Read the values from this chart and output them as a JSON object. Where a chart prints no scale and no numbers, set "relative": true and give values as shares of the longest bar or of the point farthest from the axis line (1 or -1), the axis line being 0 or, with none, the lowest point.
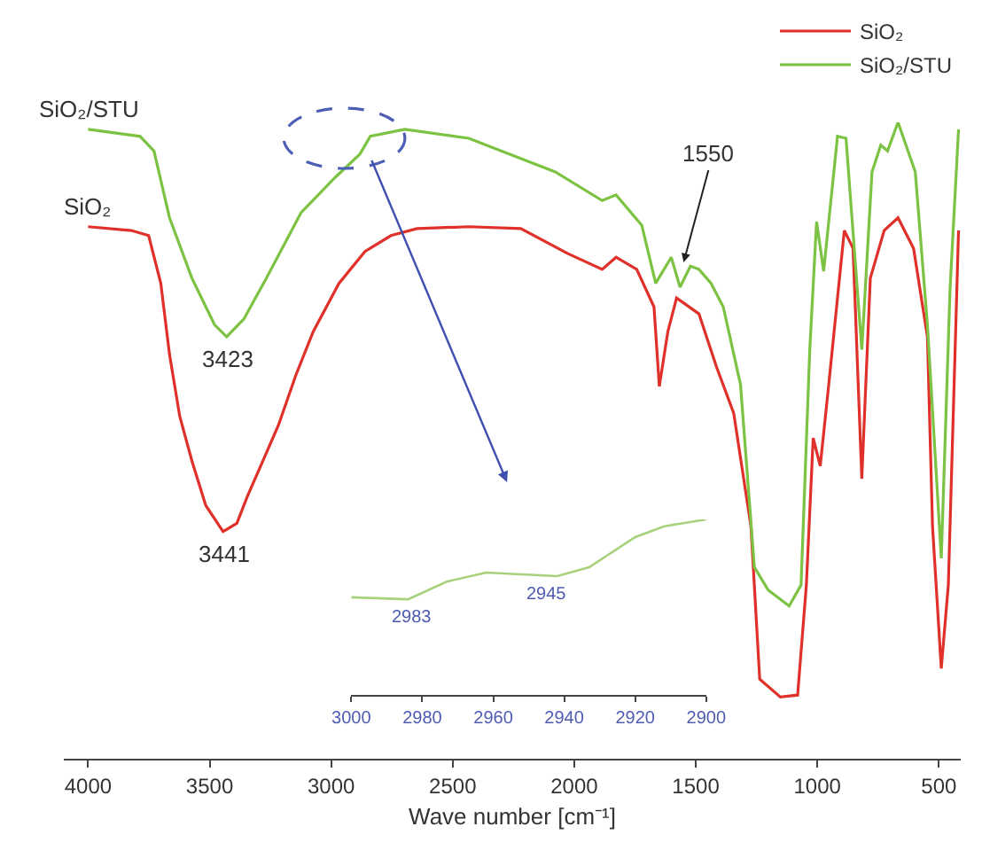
{
  "chart_data": [
    {
      "type": "line",
      "xlabel": "Wave number [cm⁻¹]",
      "xlim": [
        4100,
        410
      ],
      "xticks": [
        4000,
        3500,
        3000,
        2500,
        2000,
        1500,
        1000,
        500
      ],
      "relative": true,
      "legend": "top right",
      "series": [
        {
          "name": "SiO₂",
          "color": "#e0302a",
          "x": [
            4000,
            3822,
            3751,
            3701,
            3665,
            3623,
            3573,
            3516,
            3445,
            3388,
            3345,
            3288,
            3217,
            3146,
            3074,
            2968,
            2861,
            2754,
            2647,
            2434,
            2220,
            2028,
            1885,
            1828,
            1743,
            1672,
            1650,
            1615,
            1579,
            1487,
            1415,
            1344,
            1273,
            1237,
            1152,
            1081,
            1045,
            1017,
            988,
            953,
            889,
            853,
            817,
            782,
            725,
            668,
            604,
            547,
            526,
            490,
            461,
            419
          ],
          "values": [
            0.836,
            0.83,
            0.822,
            0.747,
            0.635,
            0.538,
            0.468,
            0.398,
            0.357,
            0.37,
            0.412,
            0.462,
            0.524,
            0.602,
            0.671,
            0.747,
            0.797,
            0.822,
            0.833,
            0.836,
            0.833,
            0.794,
            0.769,
            0.788,
            0.769,
            0.71,
            0.585,
            0.671,
            0.724,
            0.699,
            0.616,
            0.543,
            0.365,
            0.125,
            0.097,
            0.1,
            0.273,
            0.504,
            0.46,
            0.588,
            0.83,
            0.802,
            0.44,
            0.755,
            0.83,
            0.85,
            0.802,
            0.663,
            0.365,
            0.142,
            0.273,
            0.83
          ]
        },
        {
          "name": "SiO₂/STU",
          "color": "#7cc243",
          "x": [
            4000,
            3786,
            3729,
            3665,
            3573,
            3480,
            3430,
            3359,
            3267,
            3124,
            2982,
            2882,
            2839,
            2697,
            2434,
            2078,
            1885,
            1828,
            1722,
            1665,
            1601,
            1565,
            1522,
            1487,
            1437,
            1387,
            1316,
            1259,
            1202,
            1116,
            1067,
            1031,
            1003,
            974,
            917,
            882,
            817,
            775,
            739,
            711,
            668,
            597,
            547,
            490,
            454,
            419
          ],
          "values": [
            0.989,
            0.978,
            0.955,
            0.85,
            0.755,
            0.682,
            0.663,
            0.691,
            0.755,
            0.858,
            0.914,
            0.95,
            0.978,
            0.989,
            0.975,
            0.922,
            0.877,
            0.886,
            0.838,
            0.747,
            0.788,
            0.741,
            0.774,
            0.769,
            0.747,
            0.71,
            0.588,
            0.301,
            0.265,
            0.24,
            0.273,
            0.643,
            0.844,
            0.766,
            0.978,
            0.975,
            0.643,
            0.922,
            0.964,
            0.955,
            1.0,
            0.922,
            0.682,
            0.315,
            0.738,
            0.989
          ]
        }
      ],
      "annotations": [
        {
          "text": "3423",
          "x": 3423,
          "y": 0.663
        },
        {
          "text": "3441",
          "x": 3441,
          "y": 0.357
        },
        {
          "text": "1550",
          "x": 1550,
          "y": 0.78
        }
      ]
    },
    {
      "type": "line",
      "xlim": [
        3000,
        2900
      ],
      "xticks": [
        3000,
        2980,
        2960,
        2940,
        2920,
        2900
      ],
      "relative": true,
      "series": [
        {
          "color": "#a8d17c",
          "x": [
            3000,
            2984,
            2973,
            2962,
            2942,
            2933,
            2920,
            2912,
            2900
          ],
          "values": [
            0.556,
            0.545,
            0.646,
            0.697,
            0.677,
            0.727,
            0.899,
            0.96,
            1.0
          ]
        }
      ],
      "annotations": [
        {
          "text": "2983",
          "x": 2983,
          "y": 0.545
        },
        {
          "text": "2945",
          "x": 2945,
          "y": 0.677
        }
      ]
    }
  ]
}
